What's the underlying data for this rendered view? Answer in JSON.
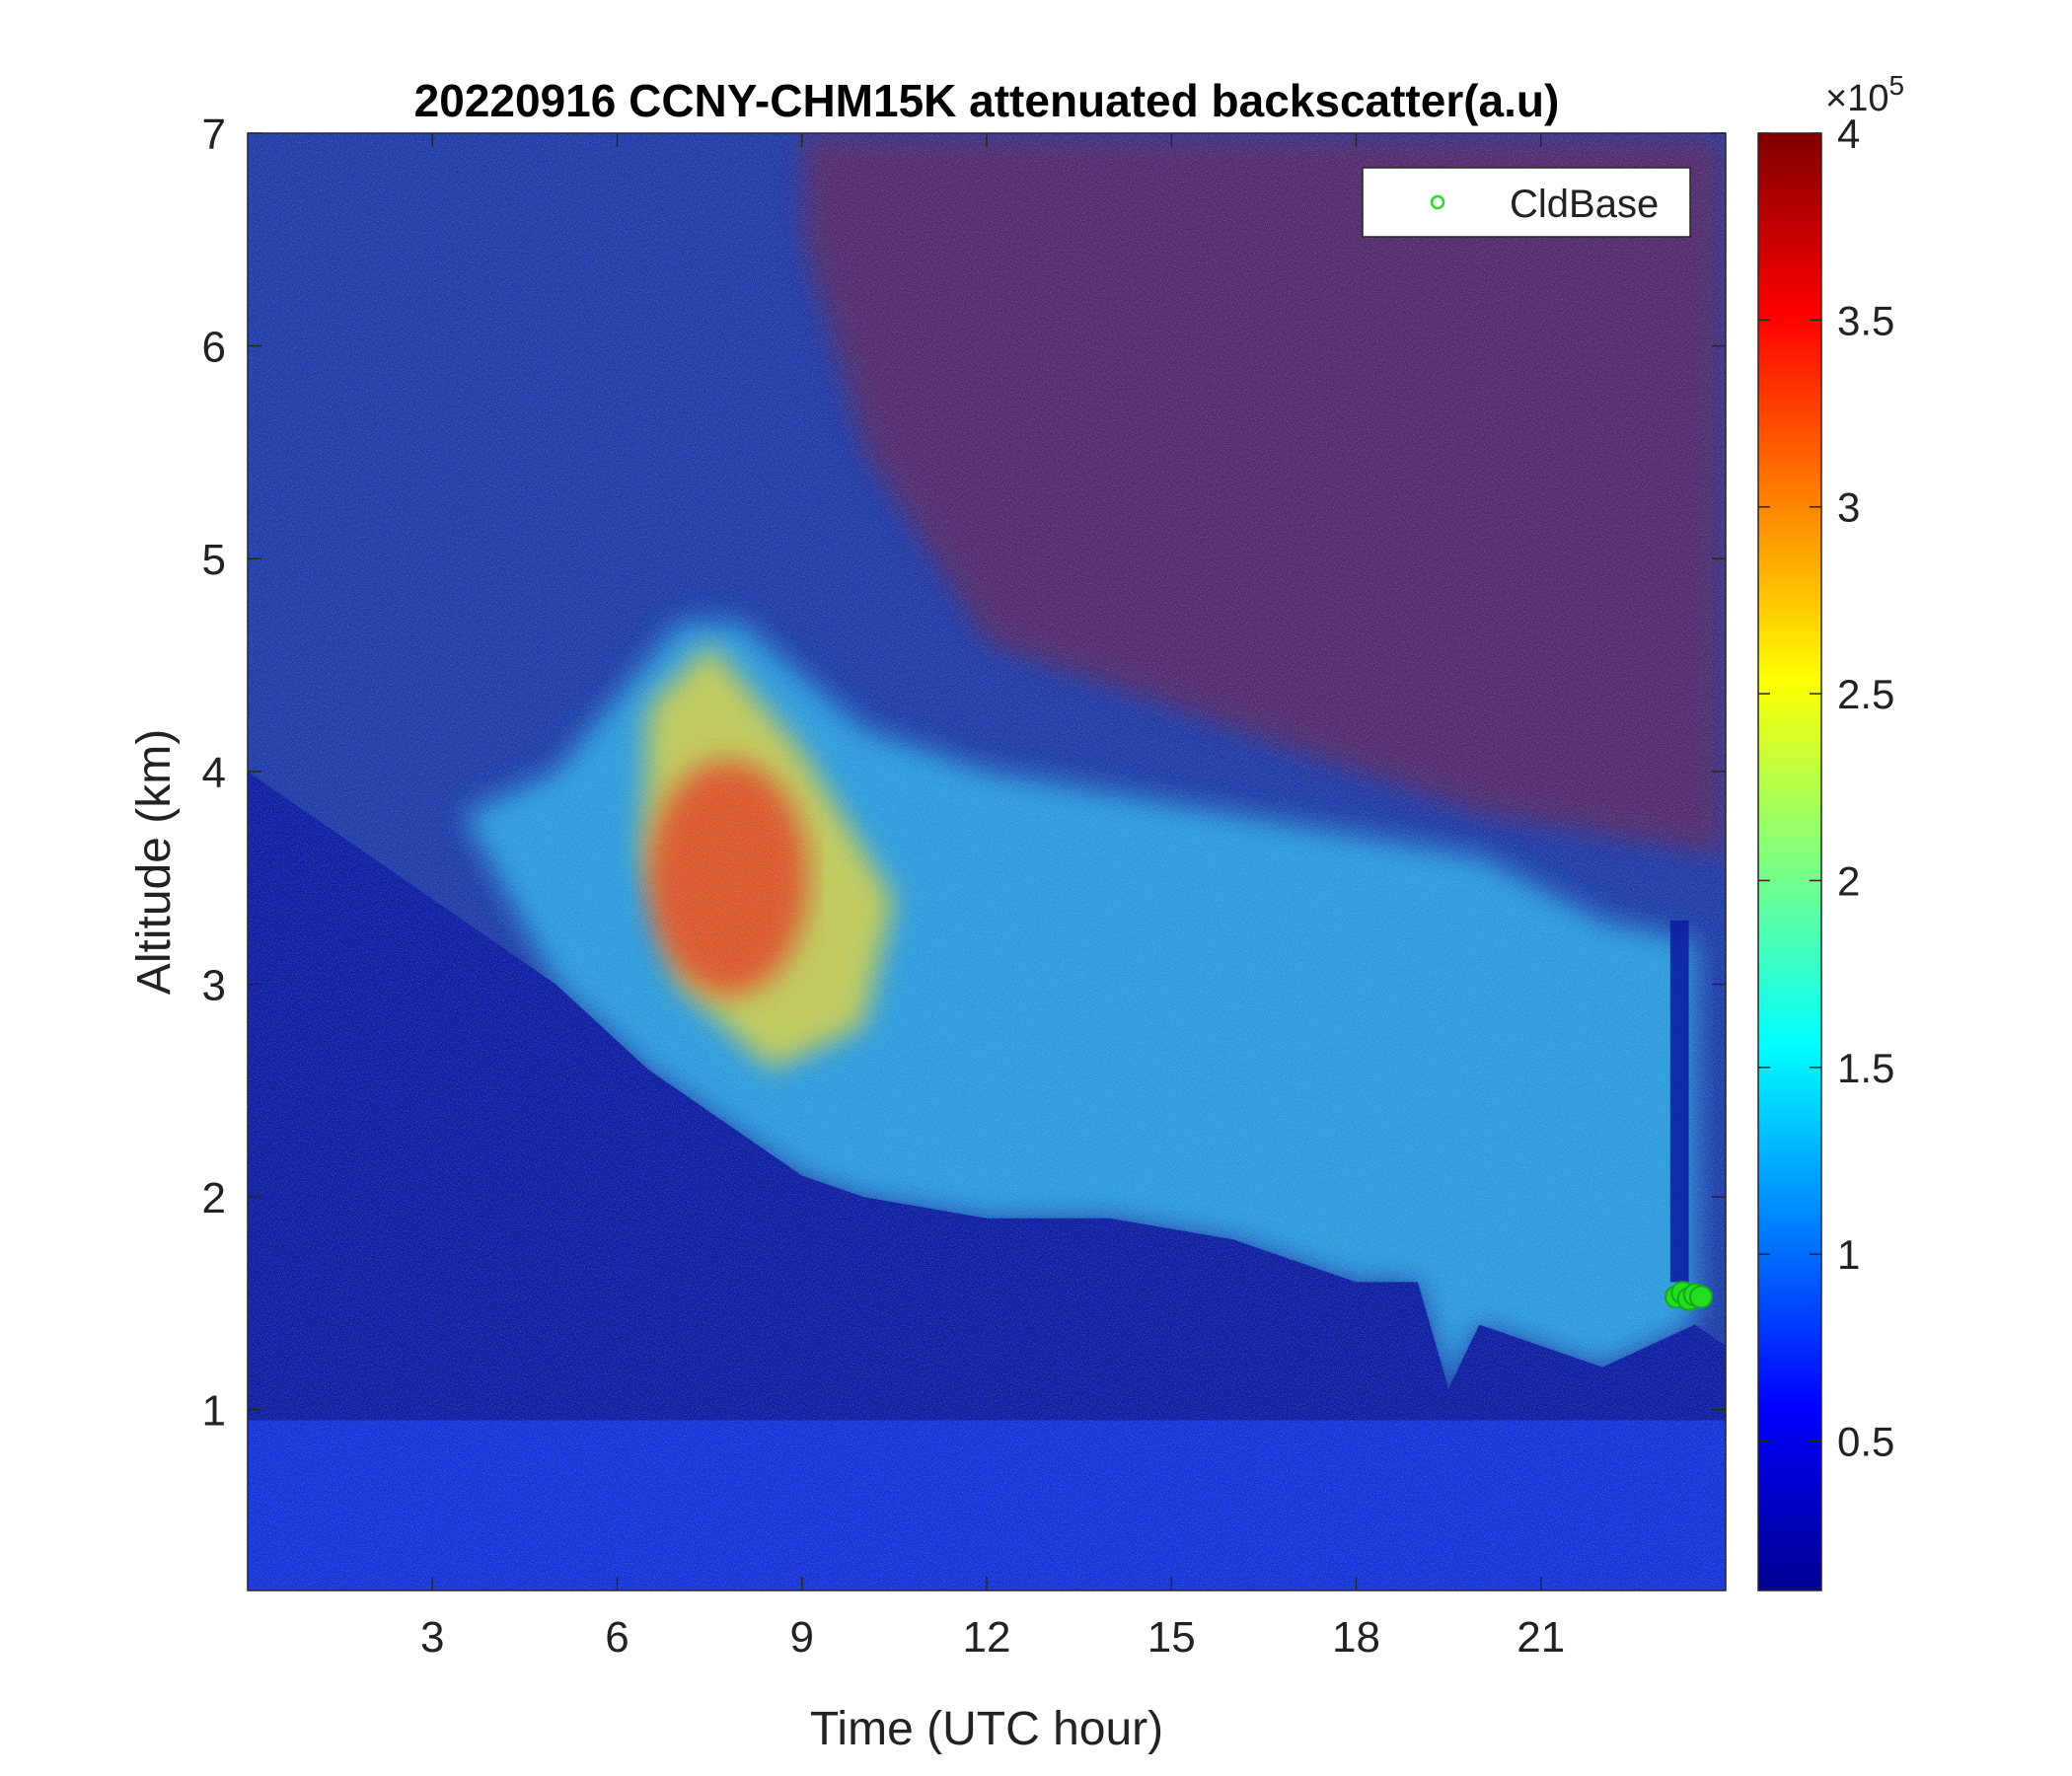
{
  "chart_data": {
    "type": "heatmap",
    "title": "20220916 CCNY-CHM15K attenuated backscatter(a.u)",
    "xlabel": "Time (UTC hour)",
    "ylabel": "Altitude (km)",
    "xlim": [
      0,
      24
    ],
    "ylim": [
      0.15,
      7
    ],
    "xticks": [
      3,
      6,
      9,
      12,
      15,
      18,
      21
    ],
    "yticks": [
      1,
      2,
      3,
      4,
      5,
      6,
      7
    ],
    "colorbar": {
      "colormap": "jet",
      "range": [
        0.1,
        4
      ],
      "ticks": [
        0.5,
        1,
        1.5,
        2,
        2.5,
        3,
        3.5,
        4
      ],
      "tick_labels": [
        "0.5",
        "1",
        "1.5",
        "2",
        "2.5",
        "3",
        "3.5",
        "4"
      ],
      "multiplier_base": "×10",
      "multiplier_exp": "5"
    },
    "legend": {
      "position": "top-right",
      "entries": [
        {
          "name": "CldBase",
          "marker": "circle",
          "color": "#22dd22"
        }
      ]
    },
    "series": [
      {
        "name": "CldBase",
        "type": "scatter",
        "x": [
          23.2,
          23.3,
          23.4,
          23.5,
          23.6
        ],
        "y": [
          1.53,
          1.55,
          1.52,
          1.54,
          1.53
        ]
      }
    ],
    "features": {
      "aerosol_layer_top_km": {
        "x": [
          3.5,
          5,
          7,
          8,
          10,
          12,
          14,
          16,
          18,
          20,
          22,
          23.5
        ],
        "y": [
          3.8,
          4.0,
          4.7,
          4.7,
          4.2,
          4.0,
          3.9,
          3.8,
          3.7,
          3.6,
          3.3,
          3.2
        ]
      },
      "aerosol_layer_base_km": {
        "x": [
          0,
          3,
          5,
          6.5,
          8,
          9,
          10,
          12,
          13,
          14,
          16,
          18,
          19,
          19.5,
          20,
          22,
          23.5
        ],
        "y": [
          4.0,
          3.4,
          3.0,
          2.6,
          2.3,
          2.1,
          2.0,
          1.9,
          1.9,
          1.9,
          1.8,
          1.6,
          1.6,
          1.1,
          1.4,
          1.2,
          1.4
        ]
      },
      "aerosol_peak": {
        "x": 7.8,
        "y": 3.5,
        "value": 3.5
      }
    }
  }
}
